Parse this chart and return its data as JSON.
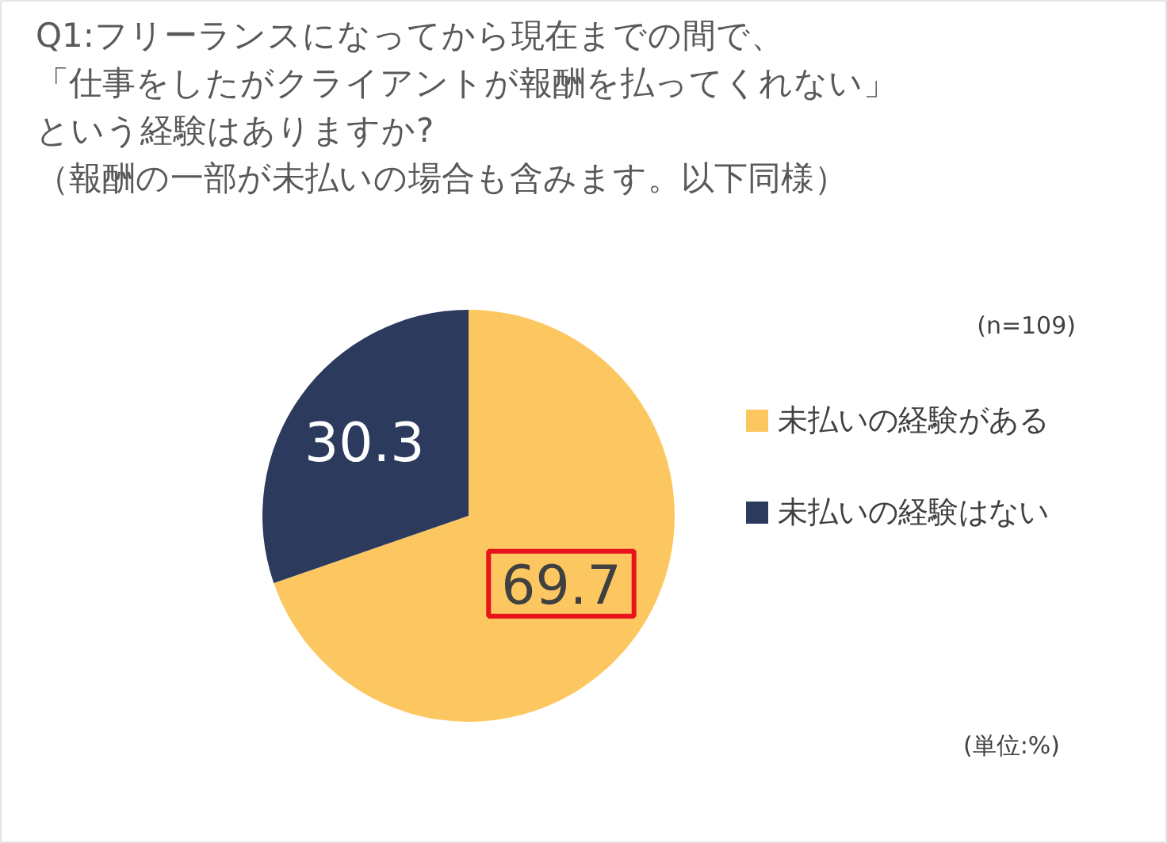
{
  "chart_data": {
    "type": "pie",
    "title": "Q1:フリーランスになってから現在までの間で、「仕事をしたがクライアントが報酬を払ってくれない」という経験はありますか?",
    "subtitle": "（報酬の一部が未払いの場合も含みます。以下同様）",
    "categories": [
      "未払いの経験がある",
      "未払いの経験はない"
    ],
    "values": [
      69.7,
      30.3
    ],
    "colors": [
      "#fcc760",
      "#2c3a5e"
    ],
    "data_labels": true,
    "legend": "right",
    "annotations": [
      "(n=109)",
      "(単位:%)"
    ]
  }
}
